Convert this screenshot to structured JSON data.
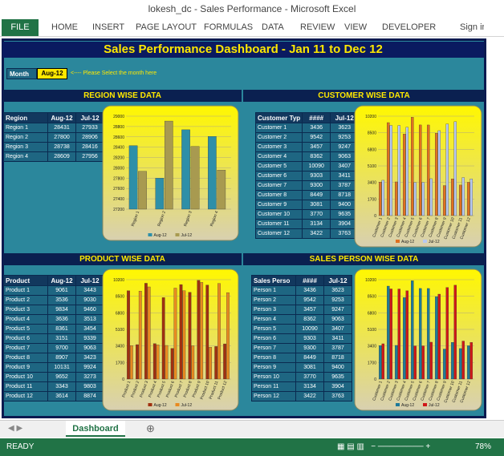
{
  "window": {
    "title": "lokesh_dc - Sales Performance - Microsoft Excel",
    "file": "FILE",
    "menu": [
      "HOME",
      "INSERT",
      "PAGE LAYOUT",
      "FORMULAS",
      "DATA",
      "REVIEW",
      "VIEW",
      "DEVELOPER"
    ],
    "sign_in": "Sign in"
  },
  "dashboard": {
    "title": "Sales Performance Dashboard - Jan 11 to Dec 12",
    "month_label": "Month",
    "month": "Aug-12",
    "hint": "<---- Please Select the month here"
  },
  "panels": [
    {
      "title": "REGION WISE DATA",
      "headers": [
        "Region",
        "Aug-12",
        "Jul-12"
      ],
      "rows": [
        [
          "Region 1",
          28431,
          27933
        ],
        [
          "Region 2",
          27800,
          28906
        ],
        [
          "Region 3",
          28738,
          28416
        ],
        [
          "Region 4",
          28609,
          27956
        ]
      ],
      "chart": {
        "type": "bar",
        "categories": [
          "Region 1",
          "Region 2",
          "Region 3",
          "Region 4"
        ],
        "series": [
          {
            "name": "Aug-12",
            "color": "#2e8fa8"
          },
          {
            "name": "Jul-12",
            "color": "#a89a50"
          }
        ],
        "ylim": [
          27200,
          29000
        ],
        "yticks": [
          27200,
          27400,
          27600,
          27800,
          28000,
          28200,
          28400,
          28600,
          28800,
          29000
        ]
      }
    },
    {
      "title": "CUSTOMER WISE DATA",
      "headers": [
        "Customer Typ",
        "####",
        "Jul-12"
      ],
      "rows": [
        [
          "Customer 1",
          3436,
          3623
        ],
        [
          "Customer 2",
          9542,
          9253
        ],
        [
          "Customer 3",
          3457,
          9247
        ],
        [
          "Customer 4",
          8362,
          9063
        ],
        [
          "Customer 5",
          10090,
          3407
        ],
        [
          "Customer 6",
          9303,
          3411
        ],
        [
          "Customer 7",
          9300,
          3787
        ],
        [
          "Customer 8",
          8449,
          8718
        ],
        [
          "Customer 9",
          3081,
          9400
        ],
        [
          "Customer 10",
          3770,
          9635
        ],
        [
          "Customer 11",
          3134,
          3904
        ],
        [
          "Customer 12",
          3422,
          3763
        ]
      ],
      "chart": {
        "type": "bar",
        "categories": [
          "Customer 1",
          "Customer 2",
          "Customer 3",
          "Customer 4",
          "Customer 5",
          "Customer 6",
          "Customer 7",
          "Customer 8",
          "Customer 9",
          "Customer 10",
          "Customer 11",
          "Customer 12"
        ],
        "series": [
          {
            "name": "Aug-12",
            "color": "#e07020"
          },
          {
            "name": "Jul-12",
            "color": "#b8c8f0"
          }
        ],
        "ylim": [
          0,
          10200
        ],
        "yticks": [
          0,
          1700,
          3400,
          5100,
          6800,
          8500,
          10200
        ]
      }
    },
    {
      "title": "PRODUCT WISE DATA",
      "headers": [
        "Product",
        "Aug-12",
        "Jul-12"
      ],
      "rows": [
        [
          "Product 1",
          9061,
          3443
        ],
        [
          "Product 2",
          3536,
          9030
        ],
        [
          "Product 3",
          9834,
          9460
        ],
        [
          "Product 4",
          3636,
          3513
        ],
        [
          "Product 5",
          8361,
          3454
        ],
        [
          "Product 6",
          3151,
          9339
        ],
        [
          "Product 7",
          9700,
          9063
        ],
        [
          "Product 8",
          8907,
          3423
        ],
        [
          "Product 9",
          10131,
          9924
        ],
        [
          "Product 10",
          9652,
          3273
        ],
        [
          "Product 11",
          3343,
          9803
        ],
        [
          "Product 12",
          3614,
          8874
        ]
      ],
      "chart": {
        "type": "bar",
        "categories": [
          "Product 1",
          "Product 2",
          "Product 3",
          "Product 4",
          "Product 5",
          "Product 6",
          "Product 7",
          "Product 8",
          "Product 9",
          "Product 10",
          "Product 11",
          "Product 12"
        ],
        "series": [
          {
            "name": "Aug-12",
            "color": "#a03010"
          },
          {
            "name": "Jul-12",
            "color": "#e88a20"
          }
        ],
        "ylim": [
          0,
          10200
        ],
        "yticks": [
          0,
          1700,
          3400,
          5100,
          6800,
          8500,
          10200
        ]
      }
    },
    {
      "title": "SALES PERSON WISE DATA",
      "headers": [
        "Sales Perso",
        "####",
        "Jul-12"
      ],
      "rows": [
        [
          "Person 1",
          3436,
          3623
        ],
        [
          "Person 2",
          9542,
          9253
        ],
        [
          "Person 3",
          3457,
          9247
        ],
        [
          "Person 4",
          8362,
          9063
        ],
        [
          "Person 5",
          10090,
          3407
        ],
        [
          "Person 6",
          9303,
          3411
        ],
        [
          "Person 7",
          9300,
          3787
        ],
        [
          "Person 8",
          8449,
          8718
        ],
        [
          "Person 9",
          3081,
          9400
        ],
        [
          "Person 10",
          3770,
          9635
        ],
        [
          "Person 11",
          3134,
          3904
        ],
        [
          "Person 12",
          3422,
          3763
        ]
      ],
      "chart": {
        "type": "bar",
        "categories": [
          "Customer 1",
          "Customer 2",
          "Customer 3",
          "Customer 4",
          "Customer 5",
          "Customer 6",
          "Customer 7",
          "Customer 8",
          "Customer 9",
          "Customer 10",
          "Customer 11",
          "Customer 12"
        ],
        "series": [
          {
            "name": "Aug-12",
            "color": "#1e7a9a"
          },
          {
            "name": "Jul-12",
            "color": "#d01818"
          }
        ],
        "ylim": [
          0,
          10200
        ],
        "yticks": [
          0,
          1700,
          3400,
          5100,
          6800,
          8500,
          10200
        ]
      }
    }
  ],
  "status": {
    "sheet": "Dashboard",
    "ready": "READY",
    "zoom": "78%"
  }
}
